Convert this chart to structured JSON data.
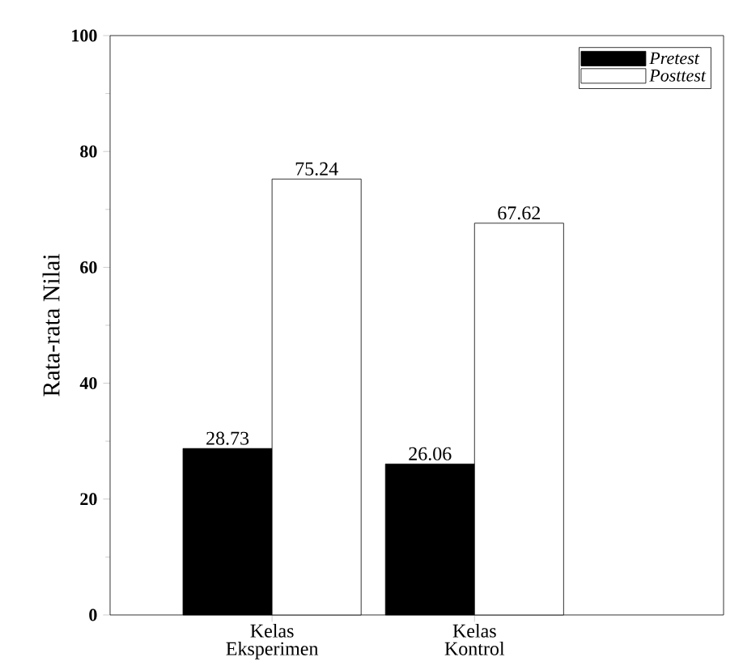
{
  "chart_data": {
    "type": "bar",
    "ylabel": "Rata-rata Nilai",
    "categories": [
      "Kelas Eksperimen",
      "Kelas Kontrol"
    ],
    "series": [
      {
        "name": "*Pretest*",
        "color": "#000000",
        "values": [
          28.73,
          26.06
        ]
      },
      {
        "name": "*Posttest*",
        "color": "#ffffff",
        "values": [
          75.24,
          67.62
        ]
      }
    ],
    "ylim": [
      0,
      100
    ],
    "yticks": [
      0,
      20,
      40,
      60,
      80,
      100
    ],
    "data_labels": true,
    "legend": "top right",
    "grid": false
  }
}
